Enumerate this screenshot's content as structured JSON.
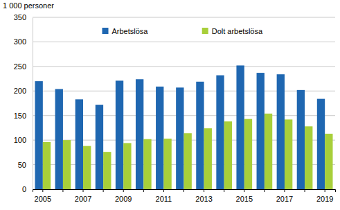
{
  "chart_data": {
    "type": "bar",
    "y_label": "1 000 personer",
    "categories": [
      "2005",
      null,
      "2007",
      null,
      "2009",
      null,
      "2011",
      null,
      "2013",
      null,
      "2015",
      null,
      "2017",
      null,
      "2019"
    ],
    "series": [
      {
        "name": "Arbetslösa",
        "color": "#1f67b1",
        "values": [
          220,
          204,
          183,
          172,
          221,
          224,
          209,
          207,
          219,
          232,
          252,
          237,
          234,
          202,
          184
        ]
      },
      {
        "name": "Dolt arbetslösa",
        "color": "#a8cf3a",
        "values": [
          96,
          100,
          88,
          76,
          94,
          102,
          103,
          114,
          124,
          138,
          143,
          154,
          142,
          128,
          113
        ]
      }
    ],
    "ylim": [
      0,
      350
    ],
    "yticks": [
      0,
      50,
      100,
      150,
      200,
      250,
      300,
      350
    ],
    "grid": true,
    "legend": "top"
  }
}
